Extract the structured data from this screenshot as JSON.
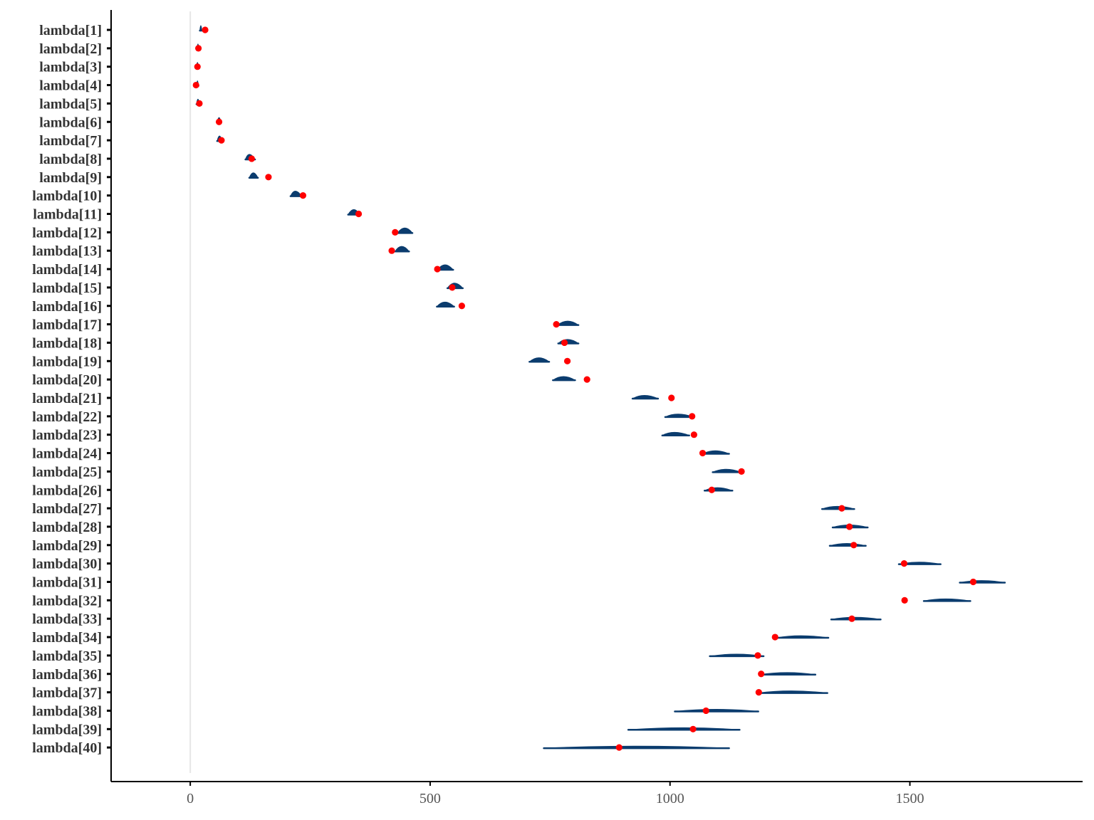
{
  "chart_data": {
    "type": "interval",
    "xlim": [
      -165,
      1860
    ],
    "x_ticks": [
      "0",
      "500",
      "1000",
      "1500"
    ],
    "x_tick_values": [
      0,
      500,
      1000,
      1500
    ],
    "reference_line_x": 0,
    "grid": false,
    "colors": {
      "interval": "#0b3c6e",
      "point": "#ff0000",
      "reference": "#e6e6e6",
      "axis": "#000000"
    },
    "rows": [
      {
        "label": "lambda[1]",
        "low": 20,
        "high": 24,
        "mode": 22,
        "point": 31
      },
      {
        "label": "lambda[2]",
        "low": 14,
        "high": 18,
        "mode": 16,
        "point": 17
      },
      {
        "label": "lambda[3]",
        "low": 13,
        "high": 17,
        "mode": 15,
        "point": 15
      },
      {
        "label": "lambda[4]",
        "low": 13,
        "high": 17,
        "mode": 15,
        "point": 12
      },
      {
        "label": "lambda[5]",
        "low": 13,
        "high": 19,
        "mode": 16,
        "point": 19
      },
      {
        "label": "lambda[6]",
        "low": 56,
        "high": 64,
        "mode": 60,
        "point": 60
      },
      {
        "label": "lambda[7]",
        "low": 56,
        "high": 66,
        "mode": 61,
        "point": 65
      },
      {
        "label": "lambda[8]",
        "low": 115,
        "high": 135,
        "mode": 122,
        "point": 128
      },
      {
        "label": "lambda[9]",
        "low": 123,
        "high": 141,
        "mode": 131,
        "point": 163
      },
      {
        "label": "lambda[10]",
        "low": 209,
        "high": 232,
        "mode": 218,
        "point": 235
      },
      {
        "label": "lambda[11]",
        "low": 329,
        "high": 353,
        "mode": 341,
        "point": 351
      },
      {
        "label": "lambda[12]",
        "low": 432,
        "high": 463,
        "mode": 447,
        "point": 427
      },
      {
        "label": "lambda[13]",
        "low": 427,
        "high": 456,
        "mode": 440,
        "point": 420
      },
      {
        "label": "lambda[14]",
        "low": 516,
        "high": 548,
        "mode": 530,
        "point": 515
      },
      {
        "label": "lambda[15]",
        "low": 536,
        "high": 568,
        "mode": 550,
        "point": 546
      },
      {
        "label": "lambda[16]",
        "low": 514,
        "high": 550,
        "mode": 530,
        "point": 566
      },
      {
        "label": "lambda[17]",
        "low": 766,
        "high": 809,
        "mode": 786,
        "point": 763
      },
      {
        "label": "lambda[18]",
        "low": 767,
        "high": 809,
        "mode": 785,
        "point": 780
      },
      {
        "label": "lambda[19]",
        "low": 707,
        "high": 748,
        "mode": 726,
        "point": 786
      },
      {
        "label": "lambda[20]",
        "low": 756,
        "high": 802,
        "mode": 777,
        "point": 827
      },
      {
        "label": "lambda[21]",
        "low": 922,
        "high": 975,
        "mode": 945,
        "point": 1003
      },
      {
        "label": "lambda[22]",
        "low": 990,
        "high": 1049,
        "mode": 1014,
        "point": 1046
      },
      {
        "label": "lambda[23]",
        "low": 984,
        "high": 1040,
        "mode": 1007,
        "point": 1050
      },
      {
        "label": "lambda[24]",
        "low": 1068,
        "high": 1123,
        "mode": 1093,
        "point": 1068
      },
      {
        "label": "lambda[25]",
        "low": 1089,
        "high": 1148,
        "mode": 1115,
        "point": 1149
      },
      {
        "label": "lambda[26]",
        "low": 1072,
        "high": 1130,
        "mode": 1097,
        "point": 1087
      },
      {
        "label": "lambda[27]",
        "low": 1317,
        "high": 1384,
        "mode": 1347,
        "point": 1358
      },
      {
        "label": "lambda[28]",
        "low": 1339,
        "high": 1412,
        "mode": 1372,
        "point": 1374
      },
      {
        "label": "lambda[29]",
        "low": 1333,
        "high": 1408,
        "mode": 1367,
        "point": 1383
      },
      {
        "label": "lambda[30]",
        "low": 1477,
        "high": 1564,
        "mode": 1518,
        "point": 1488
      },
      {
        "label": "lambda[31]",
        "low": 1604,
        "high": 1698,
        "mode": 1648,
        "point": 1632
      },
      {
        "label": "lambda[32]",
        "low": 1529,
        "high": 1626,
        "mode": 1572,
        "point": 1489
      },
      {
        "label": "lambda[33]",
        "low": 1336,
        "high": 1439,
        "mode": 1383,
        "point": 1379
      },
      {
        "label": "lambda[34]",
        "low": 1222,
        "high": 1330,
        "mode": 1270,
        "point": 1219
      },
      {
        "label": "lambda[35]",
        "low": 1083,
        "high": 1195,
        "mode": 1139,
        "point": 1183
      },
      {
        "label": "lambda[36]",
        "low": 1186,
        "high": 1303,
        "mode": 1245,
        "point": 1190
      },
      {
        "label": "lambda[37]",
        "low": 1184,
        "high": 1328,
        "mode": 1250,
        "point": 1185
      },
      {
        "label": "lambda[38]",
        "low": 1010,
        "high": 1184,
        "mode": 1098,
        "point": 1075
      },
      {
        "label": "lambda[39]",
        "low": 913,
        "high": 1145,
        "mode": 1030,
        "point": 1048
      },
      {
        "label": "lambda[40]",
        "low": 737,
        "high": 1123,
        "mode": 930,
        "point": 894
      }
    ]
  }
}
